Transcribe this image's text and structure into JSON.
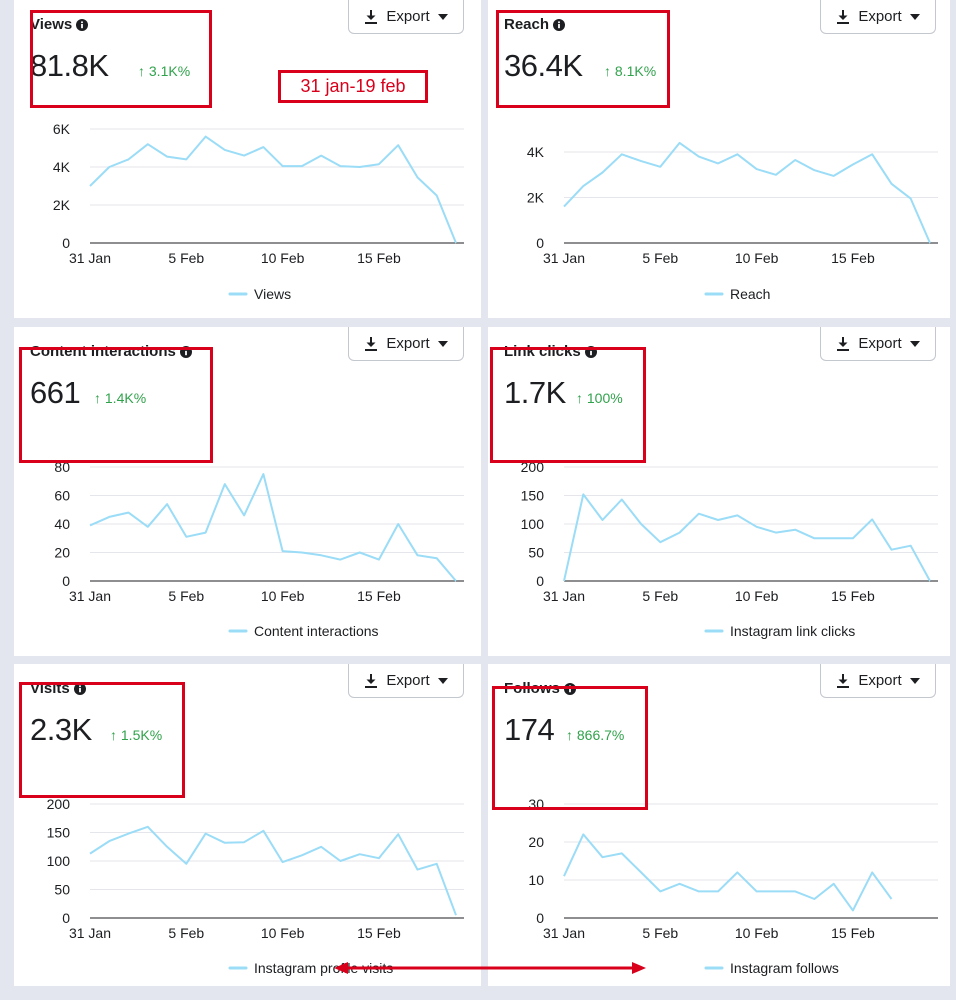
{
  "date_range_label": "31 jan-19 feb",
  "export_label": "Export",
  "colors": {
    "line": "#9bdcf7",
    "accent_up": "#31a24c",
    "annotation": "#d9001b",
    "axis_text": "#1c1e21"
  },
  "icons": {
    "info": "info-icon",
    "download": "download-icon",
    "caret": "caret-down-icon"
  },
  "cards": [
    {
      "title": "Views",
      "value": "81.8K",
      "change": "↑ 3.1K%",
      "legend": "Views"
    },
    {
      "title": "Reach",
      "value": "36.4K",
      "change": "↑ 8.1K%",
      "legend": "Reach"
    },
    {
      "title": "Content interactions",
      "value": "661",
      "change": "↑ 1.4K%",
      "legend": "Content interactions"
    },
    {
      "title": "Link clicks",
      "value": "1.7K",
      "change": "↑ 100%",
      "legend": "Instagram link clicks"
    },
    {
      "title": "Visits",
      "value": "2.3K",
      "change": "↑ 1.5K%",
      "legend": "Instagram profile visits"
    },
    {
      "title": "Follows",
      "value": "174",
      "change": "↑ 866.7%",
      "legend": "Instagram follows"
    }
  ],
  "chart_data": [
    {
      "type": "line",
      "title": "Views",
      "categories": [
        "31 Jan",
        "1 Feb",
        "2 Feb",
        "3 Feb",
        "4 Feb",
        "5 Feb",
        "6 Feb",
        "7 Feb",
        "8 Feb",
        "9 Feb",
        "10 Feb",
        "11 Feb",
        "12 Feb",
        "13 Feb",
        "14 Feb",
        "15 Feb",
        "16 Feb",
        "17 Feb",
        "18 Feb",
        "19 Feb"
      ],
      "xticks": [
        "31 Jan",
        "5 Feb",
        "10 Feb",
        "15 Feb"
      ],
      "yticks": [
        "0",
        "2K",
        "4K",
        "6K"
      ],
      "ylim": [
        0,
        6000
      ],
      "series": [
        {
          "name": "Views",
          "values": [
            3000,
            4000,
            4400,
            5200,
            4550,
            4400,
            5600,
            4900,
            4600,
            5050,
            4050,
            4050,
            4600,
            4050,
            4000,
            4150,
            5150,
            3450,
            2500,
            0
          ]
        }
      ],
      "legend": "bottom"
    },
    {
      "type": "line",
      "title": "Reach",
      "categories": [
        "31 Jan",
        "1 Feb",
        "2 Feb",
        "3 Feb",
        "4 Feb",
        "5 Feb",
        "6 Feb",
        "7 Feb",
        "8 Feb",
        "9 Feb",
        "10 Feb",
        "11 Feb",
        "12 Feb",
        "13 Feb",
        "14 Feb",
        "15 Feb",
        "16 Feb",
        "17 Feb",
        "18 Feb",
        "19 Feb"
      ],
      "xticks": [
        "31 Jan",
        "5 Feb",
        "10 Feb",
        "15 Feb"
      ],
      "yticks": [
        "0",
        "2K",
        "4K"
      ],
      "ylim": [
        0,
        4000
      ],
      "series": [
        {
          "name": "Reach",
          "values": [
            1600,
            2500,
            3100,
            3900,
            3600,
            3350,
            4400,
            3800,
            3500,
            3900,
            3250,
            3000,
            3650,
            3200,
            2950,
            3450,
            3900,
            2600,
            1950,
            0
          ]
        }
      ],
      "legend": "bottom"
    },
    {
      "type": "line",
      "title": "Content interactions",
      "categories": [
        "31 Jan",
        "1 Feb",
        "2 Feb",
        "3 Feb",
        "4 Feb",
        "5 Feb",
        "6 Feb",
        "7 Feb",
        "8 Feb",
        "9 Feb",
        "10 Feb",
        "11 Feb",
        "12 Feb",
        "13 Feb",
        "14 Feb",
        "15 Feb",
        "16 Feb",
        "17 Feb",
        "18 Feb",
        "19 Feb"
      ],
      "xticks": [
        "31 Jan",
        "5 Feb",
        "10 Feb",
        "15 Feb"
      ],
      "yticks": [
        "0",
        "20",
        "40",
        "60",
        "80"
      ],
      "ylim": [
        0,
        80
      ],
      "series": [
        {
          "name": "Content interactions",
          "values": [
            39,
            45,
            48,
            38,
            54,
            31,
            34,
            68,
            46,
            75,
            21,
            20,
            18,
            15,
            20,
            15,
            40,
            18,
            16,
            0
          ]
        }
      ],
      "legend": "bottom"
    },
    {
      "type": "line",
      "title": "Link clicks",
      "categories": [
        "31 Jan",
        "1 Feb",
        "2 Feb",
        "3 Feb",
        "4 Feb",
        "5 Feb",
        "6 Feb",
        "7 Feb",
        "8 Feb",
        "9 Feb",
        "10 Feb",
        "11 Feb",
        "12 Feb",
        "13 Feb",
        "14 Feb",
        "15 Feb",
        "16 Feb",
        "17 Feb",
        "18 Feb",
        "19 Feb"
      ],
      "xticks": [
        "31 Jan",
        "5 Feb",
        "10 Feb",
        "15 Feb"
      ],
      "yticks": [
        "0",
        "50",
        "100",
        "150",
        "200"
      ],
      "ylim": [
        0,
        200
      ],
      "series": [
        {
          "name": "Instagram link clicks",
          "values": [
            0,
            152,
            107,
            143,
            100,
            68,
            85,
            118,
            107,
            115,
            95,
            85,
            90,
            75,
            75,
            75,
            108,
            55,
            62,
            0
          ]
        }
      ],
      "legend": "bottom"
    },
    {
      "type": "line",
      "title": "Visits",
      "categories": [
        "31 Jan",
        "1 Feb",
        "2 Feb",
        "3 Feb",
        "4 Feb",
        "5 Feb",
        "6 Feb",
        "7 Feb",
        "8 Feb",
        "9 Feb",
        "10 Feb",
        "11 Feb",
        "12 Feb",
        "13 Feb",
        "14 Feb",
        "15 Feb",
        "16 Feb",
        "17 Feb",
        "18 Feb",
        "19 Feb"
      ],
      "xticks": [
        "31 Jan",
        "5 Feb",
        "10 Feb",
        "15 Feb"
      ],
      "yticks": [
        "0",
        "50",
        "100",
        "150",
        "200"
      ],
      "ylim": [
        0,
        200
      ],
      "series": [
        {
          "name": "Instagram profile visits",
          "values": [
            113,
            135,
            148,
            160,
            125,
            95,
            148,
            132,
            133,
            153,
            98,
            110,
            125,
            100,
            112,
            105,
            147,
            85,
            95,
            5
          ]
        }
      ],
      "legend": "bottom"
    },
    {
      "type": "line",
      "title": "Follows",
      "categories": [
        "31 Jan",
        "1 Feb",
        "2 Feb",
        "3 Feb",
        "4 Feb",
        "5 Feb",
        "6 Feb",
        "7 Feb",
        "8 Feb",
        "9 Feb",
        "10 Feb",
        "11 Feb",
        "12 Feb",
        "13 Feb",
        "14 Feb",
        "15 Feb",
        "16 Feb",
        "17 Feb"
      ],
      "xticks": [
        "31 Jan",
        "5 Feb",
        "10 Feb",
        "15 Feb"
      ],
      "yticks": [
        "0",
        "10",
        "20",
        "30"
      ],
      "ylim": [
        0,
        30
      ],
      "series": [
        {
          "name": "Instagram follows",
          "values": [
            11,
            22,
            16,
            17,
            12,
            7,
            9,
            7,
            7,
            12,
            7,
            7,
            7,
            5,
            9,
            2,
            12,
            5
          ]
        }
      ],
      "legend": "bottom"
    }
  ]
}
